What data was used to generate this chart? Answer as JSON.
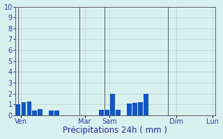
{
  "bar_values": [
    1.0,
    1.2,
    1.25,
    0.45,
    0.6,
    0.0,
    0.45,
    0.45,
    0.0,
    0.0,
    0.0,
    0.0,
    0.0,
    0.0,
    0.0,
    0.5,
    0.5,
    2.0,
    0.5,
    0.0,
    1.1,
    1.15,
    1.2,
    2.0,
    0.0,
    0.0,
    0.0,
    0.0,
    0.0,
    0.0,
    0.0,
    0.0,
    0.0,
    0.0,
    0.0,
    0.0
  ],
  "n_bars": 36,
  "bar_color": "#1155cc",
  "bar_color2": "#3399ff",
  "bg_color": "#d8f0ee",
  "grid_color": "#b0cece",
  "axis_line_color": "#555566",
  "tick_label_color": "#3333aa",
  "xlabel": "Précipitations 24h ( mm )",
  "xlabel_color": "#2222aa",
  "day_tick_pos": [
    0.5,
    12,
    16.5,
    28.5,
    35
  ],
  "day_tick_labels": [
    "Ven",
    "Mar",
    "Sam",
    "Dim",
    "Lun"
  ],
  "day_vline_pos": [
    0,
    11,
    15.5,
    27,
    35.5
  ],
  "ylim": [
    0,
    10
  ],
  "yticks": [
    0,
    1,
    2,
    3,
    4,
    5,
    6,
    7,
    8,
    9,
    10
  ],
  "xlabel_fontsize": 8.5,
  "tick_fontsize": 7
}
